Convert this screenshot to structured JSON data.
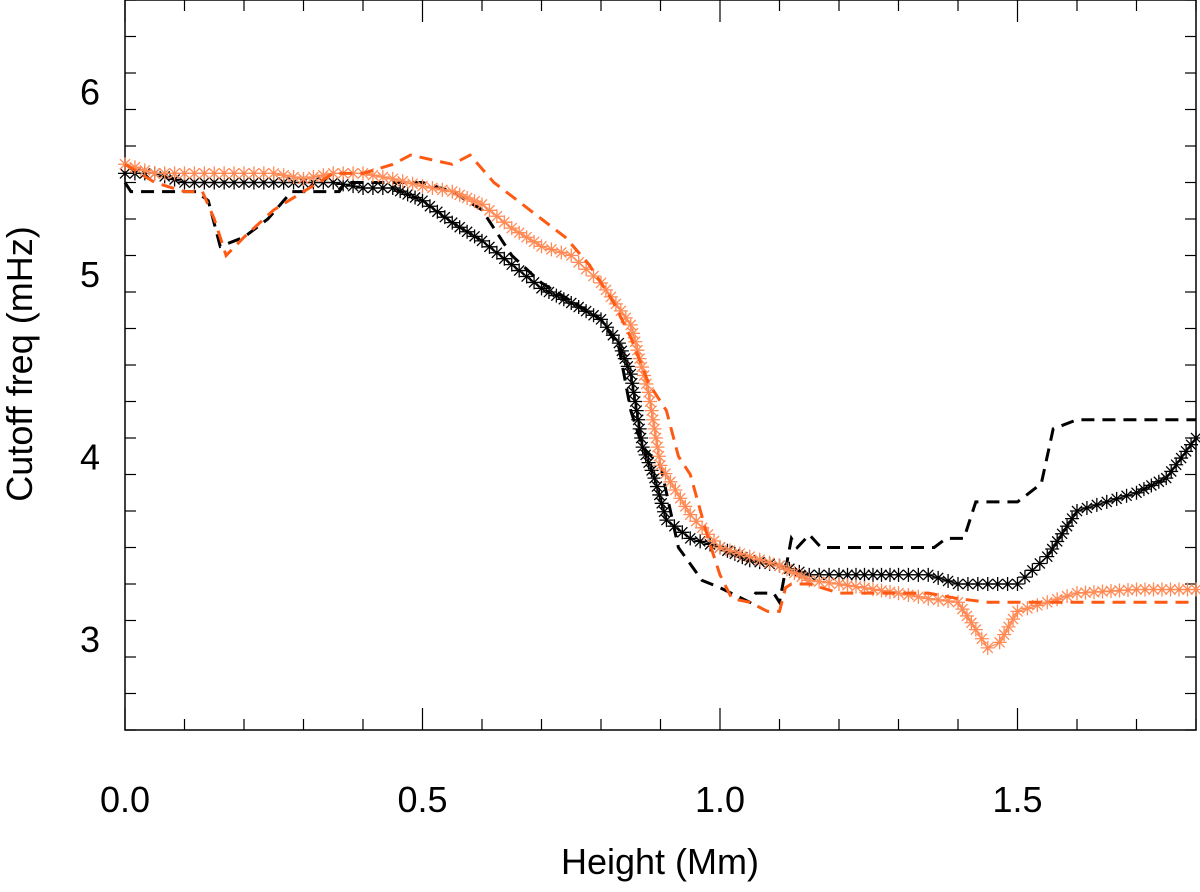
{
  "chart_data": {
    "type": "line",
    "xlabel": "Height (Mm)",
    "ylabel": "Cutoff freq (mHz)",
    "xlim": [
      0.0,
      1.8
    ],
    "ylim": [
      2.5,
      6.5
    ],
    "xticks": [
      {
        "value": 0.0,
        "label": "0.0"
      },
      {
        "value": 0.5,
        "label": "0.5"
      },
      {
        "value": 1.0,
        "label": "1.0"
      },
      {
        "value": 1.5,
        "label": "1.5"
      }
    ],
    "yticks": [
      {
        "value": 3,
        "label": "3"
      },
      {
        "value": 4,
        "label": "4"
      },
      {
        "value": 5,
        "label": "5"
      },
      {
        "value": 6,
        "label": "6"
      }
    ],
    "grid": false,
    "colors": {
      "black": "#000000",
      "orange": "#ff5a14",
      "orange_stars": "#ff8a55"
    },
    "series": [
      {
        "style": "solid-asterisk",
        "color": "#000000",
        "x": [
          0.0,
          0.05,
          0.1,
          0.15,
          0.2,
          0.25,
          0.3,
          0.35,
          0.4,
          0.45,
          0.5,
          0.55,
          0.6,
          0.65,
          0.7,
          0.75,
          0.8,
          0.83,
          0.85,
          0.87,
          0.89,
          0.91,
          0.95,
          1.0,
          1.05,
          1.1,
          1.15,
          1.2,
          1.3,
          1.35,
          1.4,
          1.45,
          1.5,
          1.55,
          1.6,
          1.65,
          1.7,
          1.75,
          1.8
        ],
        "y": [
          5.55,
          5.55,
          5.5,
          5.5,
          5.5,
          5.5,
          5.5,
          5.5,
          5.47,
          5.47,
          5.4,
          5.28,
          5.18,
          5.05,
          4.92,
          4.84,
          4.75,
          4.62,
          4.45,
          4.05,
          3.88,
          3.65,
          3.55,
          3.5,
          3.43,
          3.4,
          3.35,
          3.35,
          3.35,
          3.35,
          3.3,
          3.3,
          3.3,
          3.45,
          3.7,
          3.75,
          3.8,
          3.88,
          4.1
        ]
      },
      {
        "style": "dashed",
        "color": "#000000",
        "x": [
          0.0,
          0.01,
          0.12,
          0.14,
          0.16,
          0.2,
          0.24,
          0.28,
          0.3,
          0.36,
          0.37,
          0.4,
          0.5,
          0.55,
          0.6,
          0.65,
          0.7,
          0.75,
          0.8,
          0.83,
          0.85,
          0.87,
          0.9,
          0.93,
          0.97,
          1.0,
          1.05,
          1.06,
          1.09,
          1.1,
          1.12,
          1.13,
          1.15,
          1.17,
          1.2,
          1.3,
          1.36,
          1.38,
          1.41,
          1.43,
          1.5,
          1.52,
          1.54,
          1.56,
          1.6,
          1.8
        ],
        "y": [
          5.5,
          5.45,
          5.45,
          5.4,
          5.15,
          5.2,
          5.3,
          5.45,
          5.45,
          5.45,
          5.5,
          5.5,
          5.5,
          5.45,
          5.35,
          5.1,
          4.95,
          4.85,
          4.75,
          4.6,
          4.25,
          4.05,
          3.95,
          3.5,
          3.32,
          3.28,
          3.2,
          3.25,
          3.25,
          3.2,
          3.55,
          3.5,
          3.57,
          3.5,
          3.5,
          3.5,
          3.5,
          3.55,
          3.55,
          3.75,
          3.75,
          3.8,
          3.85,
          4.15,
          4.2,
          4.2
        ]
      },
      {
        "style": "solid-asterisk",
        "color": "#ff8a55",
        "x": [
          0.0,
          0.05,
          0.1,
          0.15,
          0.2,
          0.25,
          0.3,
          0.35,
          0.4,
          0.45,
          0.5,
          0.55,
          0.6,
          0.65,
          0.7,
          0.75,
          0.8,
          0.85,
          0.88,
          0.9,
          0.95,
          1.0,
          1.05,
          1.1,
          1.15,
          1.2,
          1.3,
          1.35,
          1.4,
          1.43,
          1.45,
          1.47,
          1.5,
          1.55,
          1.6,
          1.7,
          1.8
        ],
        "y": [
          5.6,
          5.55,
          5.55,
          5.55,
          5.55,
          5.55,
          5.52,
          5.55,
          5.55,
          5.52,
          5.48,
          5.45,
          5.38,
          5.25,
          5.15,
          5.1,
          4.95,
          4.72,
          4.35,
          3.95,
          3.68,
          3.5,
          3.45,
          3.4,
          3.32,
          3.3,
          3.25,
          3.22,
          3.2,
          3.05,
          2.95,
          2.98,
          3.15,
          3.2,
          3.25,
          3.27,
          3.27
        ]
      },
      {
        "style": "dashed",
        "color": "#ff5a14",
        "x": [
          0.0,
          0.05,
          0.1,
          0.13,
          0.15,
          0.17,
          0.2,
          0.25,
          0.3,
          0.35,
          0.4,
          0.45,
          0.48,
          0.55,
          0.58,
          0.62,
          0.66,
          0.7,
          0.74,
          0.78,
          0.82,
          0.85,
          0.88,
          0.91,
          0.93,
          0.95,
          0.98,
          1.0,
          1.02,
          1.05,
          1.08,
          1.1,
          1.11,
          1.12,
          1.15,
          1.2,
          1.3,
          1.35,
          1.4,
          1.45,
          1.5,
          1.55,
          1.6,
          1.65,
          1.7,
          1.8
        ],
        "y": [
          5.6,
          5.5,
          5.45,
          5.45,
          5.3,
          5.1,
          5.2,
          5.35,
          5.45,
          5.55,
          5.55,
          5.6,
          5.65,
          5.6,
          5.65,
          5.5,
          5.4,
          5.3,
          5.2,
          5.05,
          4.85,
          4.65,
          4.4,
          4.25,
          4.0,
          3.9,
          3.55,
          3.35,
          3.22,
          3.2,
          3.15,
          3.15,
          3.28,
          3.3,
          3.3,
          3.25,
          3.25,
          3.25,
          3.22,
          3.2,
          3.2,
          3.2,
          3.2,
          3.2,
          3.2,
          3.2
        ]
      }
    ]
  }
}
